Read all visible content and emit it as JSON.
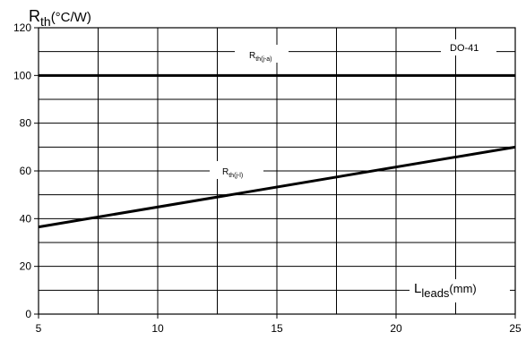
{
  "chart_data": {
    "type": "line",
    "ylabel": {
      "main": "R",
      "sub": "th",
      "unit": "(°C/W)"
    },
    "xlabel": {
      "main": "L",
      "sub": "leads",
      "unit": "(mm)"
    },
    "xlim": [
      5,
      25
    ],
    "ylim": [
      0,
      120
    ],
    "x_ticks": [
      5,
      10,
      15,
      20,
      25
    ],
    "y_ticks": [
      0,
      20,
      40,
      60,
      80,
      100,
      120
    ],
    "x_grid": [
      5,
      7.5,
      10,
      12.5,
      15,
      17.5,
      20,
      22.5,
      25
    ],
    "y_grid": [
      0,
      10,
      20,
      30,
      40,
      50,
      60,
      70,
      80,
      90,
      100,
      110,
      120
    ],
    "grid": true,
    "series": [
      {
        "name": "R_th(j-a)",
        "main": "R",
        "sub": "th(j-a)",
        "x": [
          5,
          25
        ],
        "y": [
          100,
          100
        ],
        "color": "#000000"
      },
      {
        "name": "R_th(j-l)",
        "main": "R",
        "sub": "th(j-l)",
        "x": [
          5,
          25
        ],
        "y": [
          36.5,
          70
        ],
        "color": "#000000"
      }
    ],
    "annotations": [
      {
        "text": "DO-41",
        "x": 23.6,
        "y": 112
      }
    ]
  }
}
